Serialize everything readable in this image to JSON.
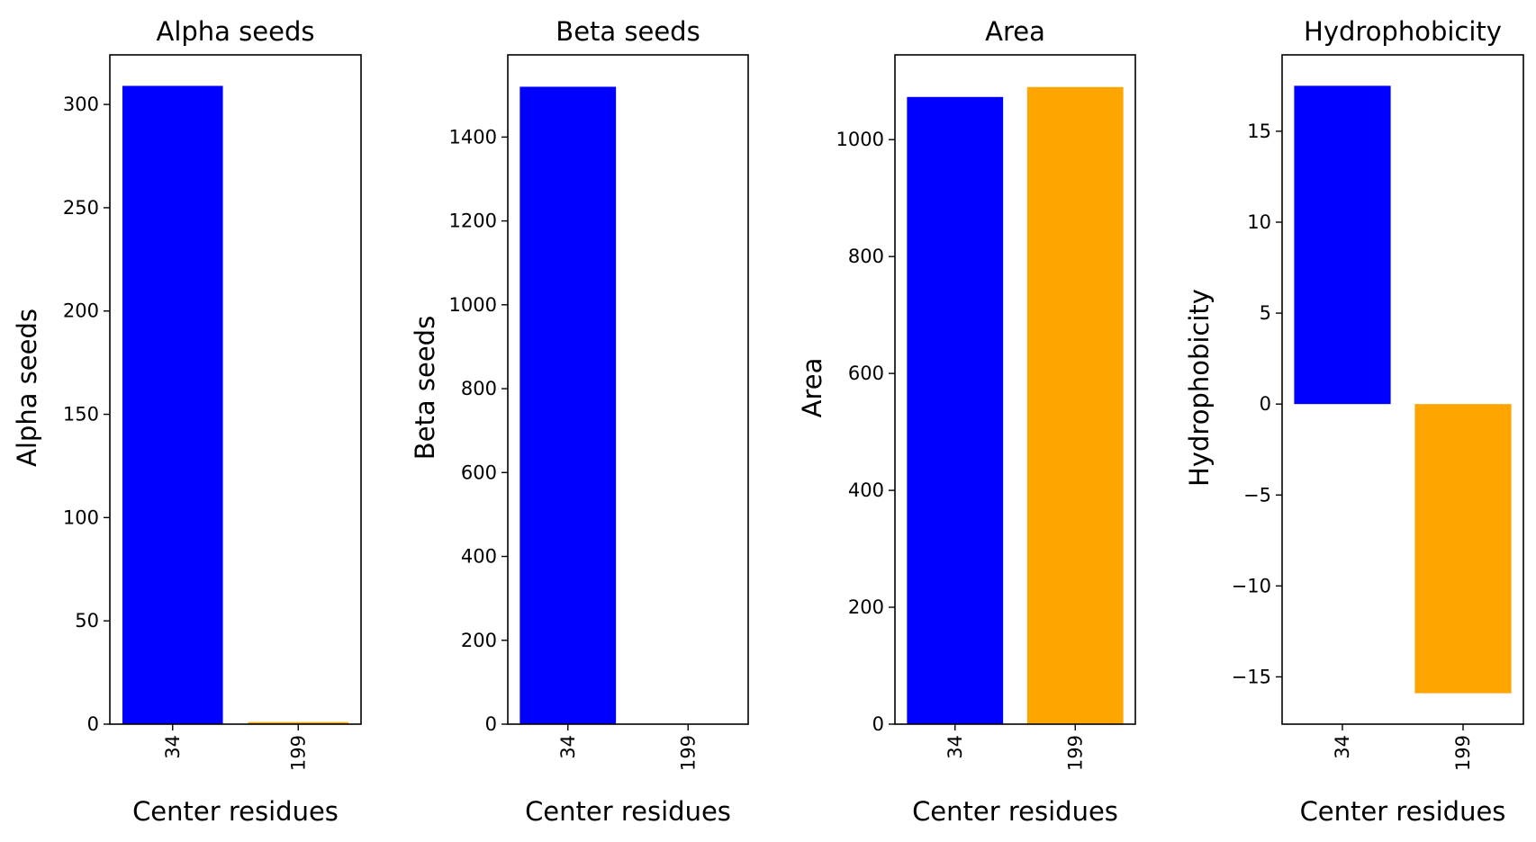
{
  "chart_data": [
    {
      "type": "bar",
      "title": "Alpha seeds",
      "xlabel": "Center residues",
      "ylabel": "Alpha seeds",
      "categories": [
        "34",
        "199"
      ],
      "values": [
        309,
        1
      ],
      "colors": [
        "#0000ff",
        "#ffa500"
      ],
      "ylim": [
        0,
        324
      ],
      "yticks": [
        0,
        50,
        100,
        150,
        200,
        250,
        300
      ],
      "ytick_labels": [
        "0",
        "50",
        "100",
        "150",
        "200",
        "250",
        "300"
      ],
      "grid": false,
      "legend": "none"
    },
    {
      "type": "bar",
      "title": "Beta seeds",
      "xlabel": "Center residues",
      "ylabel": "Beta seeds",
      "categories": [
        "34",
        "199"
      ],
      "values": [
        1520,
        0
      ],
      "colors": [
        "#0000ff",
        "#ffa500"
      ],
      "ylim": [
        0,
        1596
      ],
      "yticks": [
        0,
        200,
        400,
        600,
        800,
        1000,
        1200,
        1400
      ],
      "ytick_labels": [
        "0",
        "200",
        "400",
        "600",
        "800",
        "1000",
        "1200",
        "1400"
      ],
      "grid": false,
      "legend": "none"
    },
    {
      "type": "bar",
      "title": "Area",
      "xlabel": "Center residues",
      "ylabel": "Area",
      "categories": [
        "34",
        "199"
      ],
      "values": [
        1073,
        1090
      ],
      "colors": [
        "#0000ff",
        "#ffa500"
      ],
      "ylim": [
        0,
        1145
      ],
      "yticks": [
        0,
        200,
        400,
        600,
        800,
        1000
      ],
      "ytick_labels": [
        "0",
        "200",
        "400",
        "600",
        "800",
        "1000"
      ],
      "grid": false,
      "legend": "none"
    },
    {
      "type": "bar",
      "title": "Hydrophobicity",
      "xlabel": "Center residues",
      "ylabel": "Hydrophobicity",
      "categories": [
        "34",
        "199"
      ],
      "values": [
        17.5,
        -15.9
      ],
      "colors": [
        "#0000ff",
        "#ffa500"
      ],
      "ylim": [
        -17.6,
        19.2
      ],
      "yticks": [
        -15,
        -10,
        -5,
        0,
        5,
        10,
        15
      ],
      "ytick_labels": [
        "−15",
        "−10",
        "−5",
        "0",
        "5",
        "10",
        "15"
      ],
      "grid": false,
      "legend": "none"
    }
  ]
}
